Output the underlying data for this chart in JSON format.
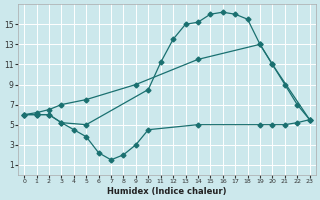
{
  "xlabel": "Humidex (Indice chaleur)",
  "bg_color": "#cce8ec",
  "grid_color": "#ffffff",
  "line_color": "#1a7070",
  "xlim": [
    -0.5,
    23.5
  ],
  "ylim": [
    0,
    17
  ],
  "xticks": [
    0,
    1,
    2,
    3,
    4,
    5,
    6,
    7,
    8,
    9,
    10,
    11,
    12,
    13,
    14,
    15,
    16,
    17,
    18,
    19,
    20,
    21,
    22,
    23
  ],
  "yticks": [
    1,
    3,
    5,
    7,
    9,
    11,
    13,
    15
  ],
  "line1_x": [
    0,
    1,
    2,
    3,
    5,
    10,
    11,
    12,
    13,
    14,
    15,
    16,
    17,
    18,
    19,
    20,
    21,
    22,
    23
  ],
  "line1_y": [
    6,
    6,
    6,
    5.2,
    5,
    8.5,
    11.2,
    13.5,
    15,
    15.2,
    16,
    16.2,
    16,
    15.5,
    13,
    11,
    9,
    7,
    5.5
  ],
  "line2_x": [
    0,
    1,
    2,
    3,
    5,
    9,
    14,
    19,
    20,
    23
  ],
  "line2_y": [
    6,
    6.2,
    6.5,
    7,
    7.5,
    9,
    11.5,
    13,
    11,
    5.5
  ],
  "line3_x": [
    0,
    1,
    2,
    3,
    4,
    5,
    6,
    7,
    8,
    9,
    10,
    14,
    19,
    20,
    21,
    22,
    23
  ],
  "line3_y": [
    6,
    6,
    6,
    5.2,
    4.5,
    3.8,
    2.2,
    1.5,
    2,
    3,
    4.5,
    5,
    5,
    5,
    5,
    5.2,
    5.5
  ]
}
